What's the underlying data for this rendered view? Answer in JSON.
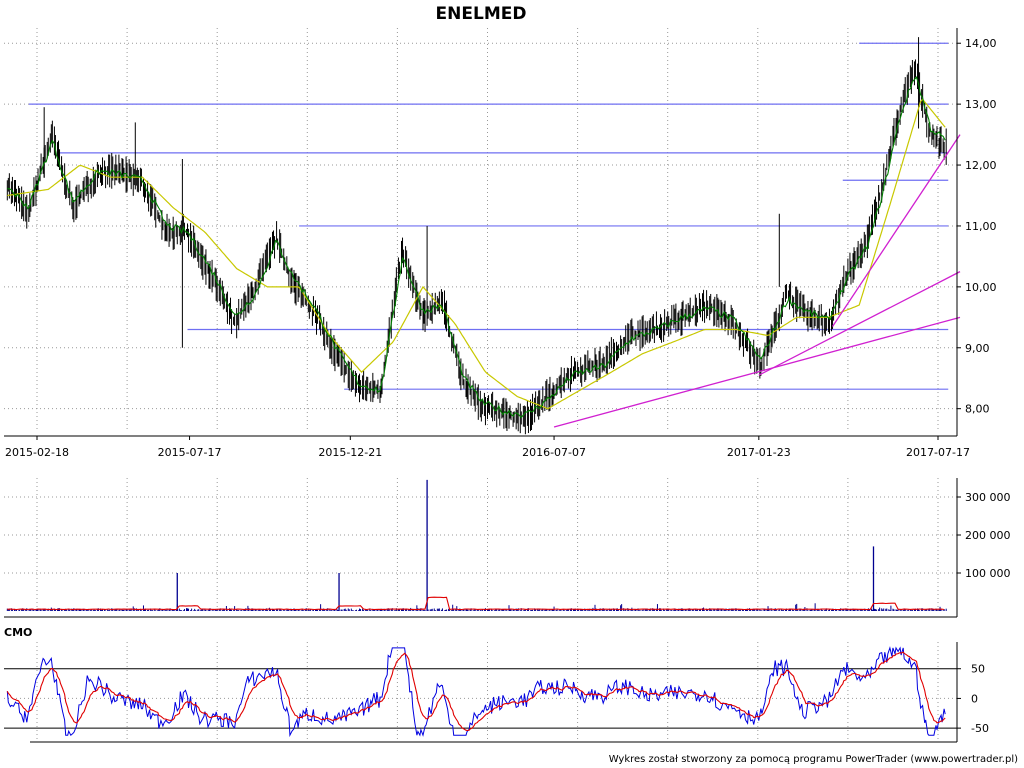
{
  "chart_data": {
    "type": "line",
    "title": "ENELMED",
    "footer": "Wykres został stworzony za pomocą programu PowerTrader (www.powertrader.pl)",
    "colors": {
      "price": "#000000",
      "ma_short": "#008000",
      "ma_long": "#c8c800",
      "support": "#6f6ff2",
      "trend": "#d020d0",
      "volume": "#000090",
      "volume_ma": "#e00000",
      "cmo": "#0000e0",
      "cmo_signal": "#e00000",
      "grid": "#999999"
    },
    "price_panel": {
      "ylim": [
        7.65,
        14.25
      ],
      "y_ticks": [
        "8,00",
        "9,00",
        "10,00",
        "11,00",
        "12,00",
        "13,00",
        "14,00"
      ],
      "x_ticks": [
        "2015-02-18",
        "2015-07-17",
        "2015-12-21",
        "2016-07-07",
        "2017-01-23",
        "2017-07-17"
      ],
      "series": [
        {
          "role": "price",
          "x": [
            "2015-01-20",
            "2015-02-10",
            "2015-03-05",
            "2015-03-25",
            "2015-04-20",
            "2015-05-10",
            "2015-06-01",
            "2015-06-25",
            "2015-07-15",
            "2015-08-10",
            "2015-08-31",
            "2015-09-20",
            "2015-10-10",
            "2015-10-25",
            "2015-11-15",
            "2015-12-10",
            "2015-12-30",
            "2016-01-20",
            "2016-02-10",
            "2016-03-01",
            "2016-03-20",
            "2016-04-10",
            "2016-04-28",
            "2016-05-20",
            "2016-06-10",
            "2016-07-01",
            "2016-07-25",
            "2016-08-25",
            "2016-09-20",
            "2016-10-15",
            "2016-11-10",
            "2016-12-05",
            "2016-12-30",
            "2017-01-25",
            "2017-02-20",
            "2017-03-10",
            "2017-04-01",
            "2017-04-20",
            "2017-05-10",
            "2017-05-25",
            "2017-06-10",
            "2017-06-25",
            "2017-07-10",
            "2017-07-25"
          ],
          "y": [
            11.7,
            11.2,
            12.5,
            11.3,
            11.9,
            11.9,
            11.7,
            10.9,
            10.9,
            10.1,
            9.4,
            10.0,
            10.8,
            10.1,
            9.6,
            8.8,
            8.35,
            8.3,
            10.6,
            9.5,
            9.8,
            8.4,
            8.05,
            7.9,
            7.85,
            8.2,
            8.6,
            8.75,
            9.2,
            9.3,
            9.5,
            9.7,
            9.4,
            8.7,
            9.9,
            9.55,
            9.4,
            10.2,
            10.8,
            11.7,
            12.9,
            13.6,
            12.5,
            12.3
          ]
        },
        {
          "role": "ma_short",
          "x": [
            "2015-01-20",
            "2015-02-10",
            "2015-03-05",
            "2015-03-25",
            "2015-04-20",
            "2015-05-10",
            "2015-06-01",
            "2015-06-25",
            "2015-07-15",
            "2015-08-10",
            "2015-08-31",
            "2015-09-20",
            "2015-10-10",
            "2015-10-25",
            "2015-11-15",
            "2015-12-10",
            "2015-12-30",
            "2016-01-20",
            "2016-02-10",
            "2016-03-01",
            "2016-03-20",
            "2016-04-10",
            "2016-04-28",
            "2016-05-20",
            "2016-06-10",
            "2016-07-01",
            "2016-07-25",
            "2016-08-25",
            "2016-09-20",
            "2016-10-15",
            "2016-11-10",
            "2016-12-05",
            "2016-12-30",
            "2017-01-25",
            "2017-02-20",
            "2017-03-10",
            "2017-04-01",
            "2017-04-20",
            "2017-05-10",
            "2017-05-25",
            "2017-06-10",
            "2017-06-25",
            "2017-07-10",
            "2017-07-25"
          ],
          "y": [
            11.65,
            11.3,
            12.4,
            11.4,
            11.9,
            11.85,
            11.75,
            11.0,
            10.9,
            10.2,
            9.5,
            9.9,
            10.75,
            10.2,
            9.7,
            8.9,
            8.4,
            8.3,
            10.5,
            9.6,
            9.7,
            8.5,
            8.1,
            7.95,
            7.9,
            8.15,
            8.55,
            8.7,
            9.15,
            9.3,
            9.5,
            9.65,
            9.45,
            8.8,
            9.8,
            9.6,
            9.45,
            10.15,
            10.7,
            11.6,
            12.8,
            13.5,
            12.6,
            12.4
          ]
        },
        {
          "role": "ma_long",
          "x": [
            "2015-01-20",
            "2015-03-01",
            "2015-04-01",
            "2015-05-01",
            "2015-06-01",
            "2015-07-01",
            "2015-08-01",
            "2015-09-01",
            "2015-10-01",
            "2015-11-01",
            "2015-12-01",
            "2016-01-01",
            "2016-02-01",
            "2016-03-01",
            "2016-04-01",
            "2016-05-01",
            "2016-06-01",
            "2016-07-01",
            "2016-08-01",
            "2016-09-01",
            "2016-10-01",
            "2016-11-01",
            "2016-12-01",
            "2017-01-01",
            "2017-02-01",
            "2017-03-01",
            "2017-04-01",
            "2017-05-01",
            "2017-06-01",
            "2017-07-01",
            "2017-07-25"
          ],
          "y": [
            11.5,
            11.6,
            12.0,
            11.8,
            11.8,
            11.3,
            10.9,
            10.3,
            10.0,
            10.0,
            9.2,
            8.6,
            9.1,
            10.0,
            9.4,
            8.6,
            8.2,
            8.0,
            8.3,
            8.6,
            8.9,
            9.1,
            9.3,
            9.3,
            9.2,
            9.5,
            9.5,
            9.7,
            11.4,
            13.1,
            12.6
          ]
        }
      ],
      "support_levels": [
        {
          "y": 14.0,
          "x_from": "2017-05-01",
          "x_to": "2017-07-27"
        },
        {
          "y": 13.0,
          "x_from": "2015-02-10",
          "x_to": "2017-07-27"
        },
        {
          "y": 12.2,
          "x_from": "2015-03-10",
          "x_to": "2017-07-27"
        },
        {
          "y": 11.75,
          "x_from": "2017-04-15",
          "x_to": "2017-07-27"
        },
        {
          "y": 11.0,
          "x_from": "2015-11-01",
          "x_to": "2017-07-27"
        },
        {
          "y": 9.3,
          "x_from": "2015-07-15",
          "x_to": "2017-07-27"
        },
        {
          "y": 8.32,
          "x_from": "2015-12-15",
          "x_to": "2017-07-27"
        }
      ],
      "trend_lines": [
        {
          "x": [
            "2016-07-07",
            "2017-07-27"
          ],
          "y": [
            7.7,
            9.5
          ]
        },
        {
          "x": [
            "2017-01-23",
            "2017-07-27"
          ],
          "y": [
            8.55,
            10.25
          ]
        },
        {
          "x": [
            "2017-04-05",
            "2017-07-27"
          ],
          "y": [
            9.35,
            12.5
          ]
        }
      ]
    },
    "volume_panel": {
      "ylim": [
        0,
        350000
      ],
      "y_ticks": [
        "100 000",
        "200 000",
        "300 000"
      ],
      "spikes": [
        {
          "x": "2015-07-05",
          "y": 100000
        },
        {
          "x": "2015-12-10",
          "y": 100000
        },
        {
          "x": "2016-03-05",
          "y": 345000
        },
        {
          "x": "2017-05-15",
          "y": 170000
        }
      ]
    },
    "cmo_panel": {
      "label": "CMO",
      "ylim": [
        -70,
        95
      ],
      "y_ticks": [
        "50",
        "0",
        "-50"
      ],
      "levels": [
        50,
        -50
      ]
    }
  }
}
